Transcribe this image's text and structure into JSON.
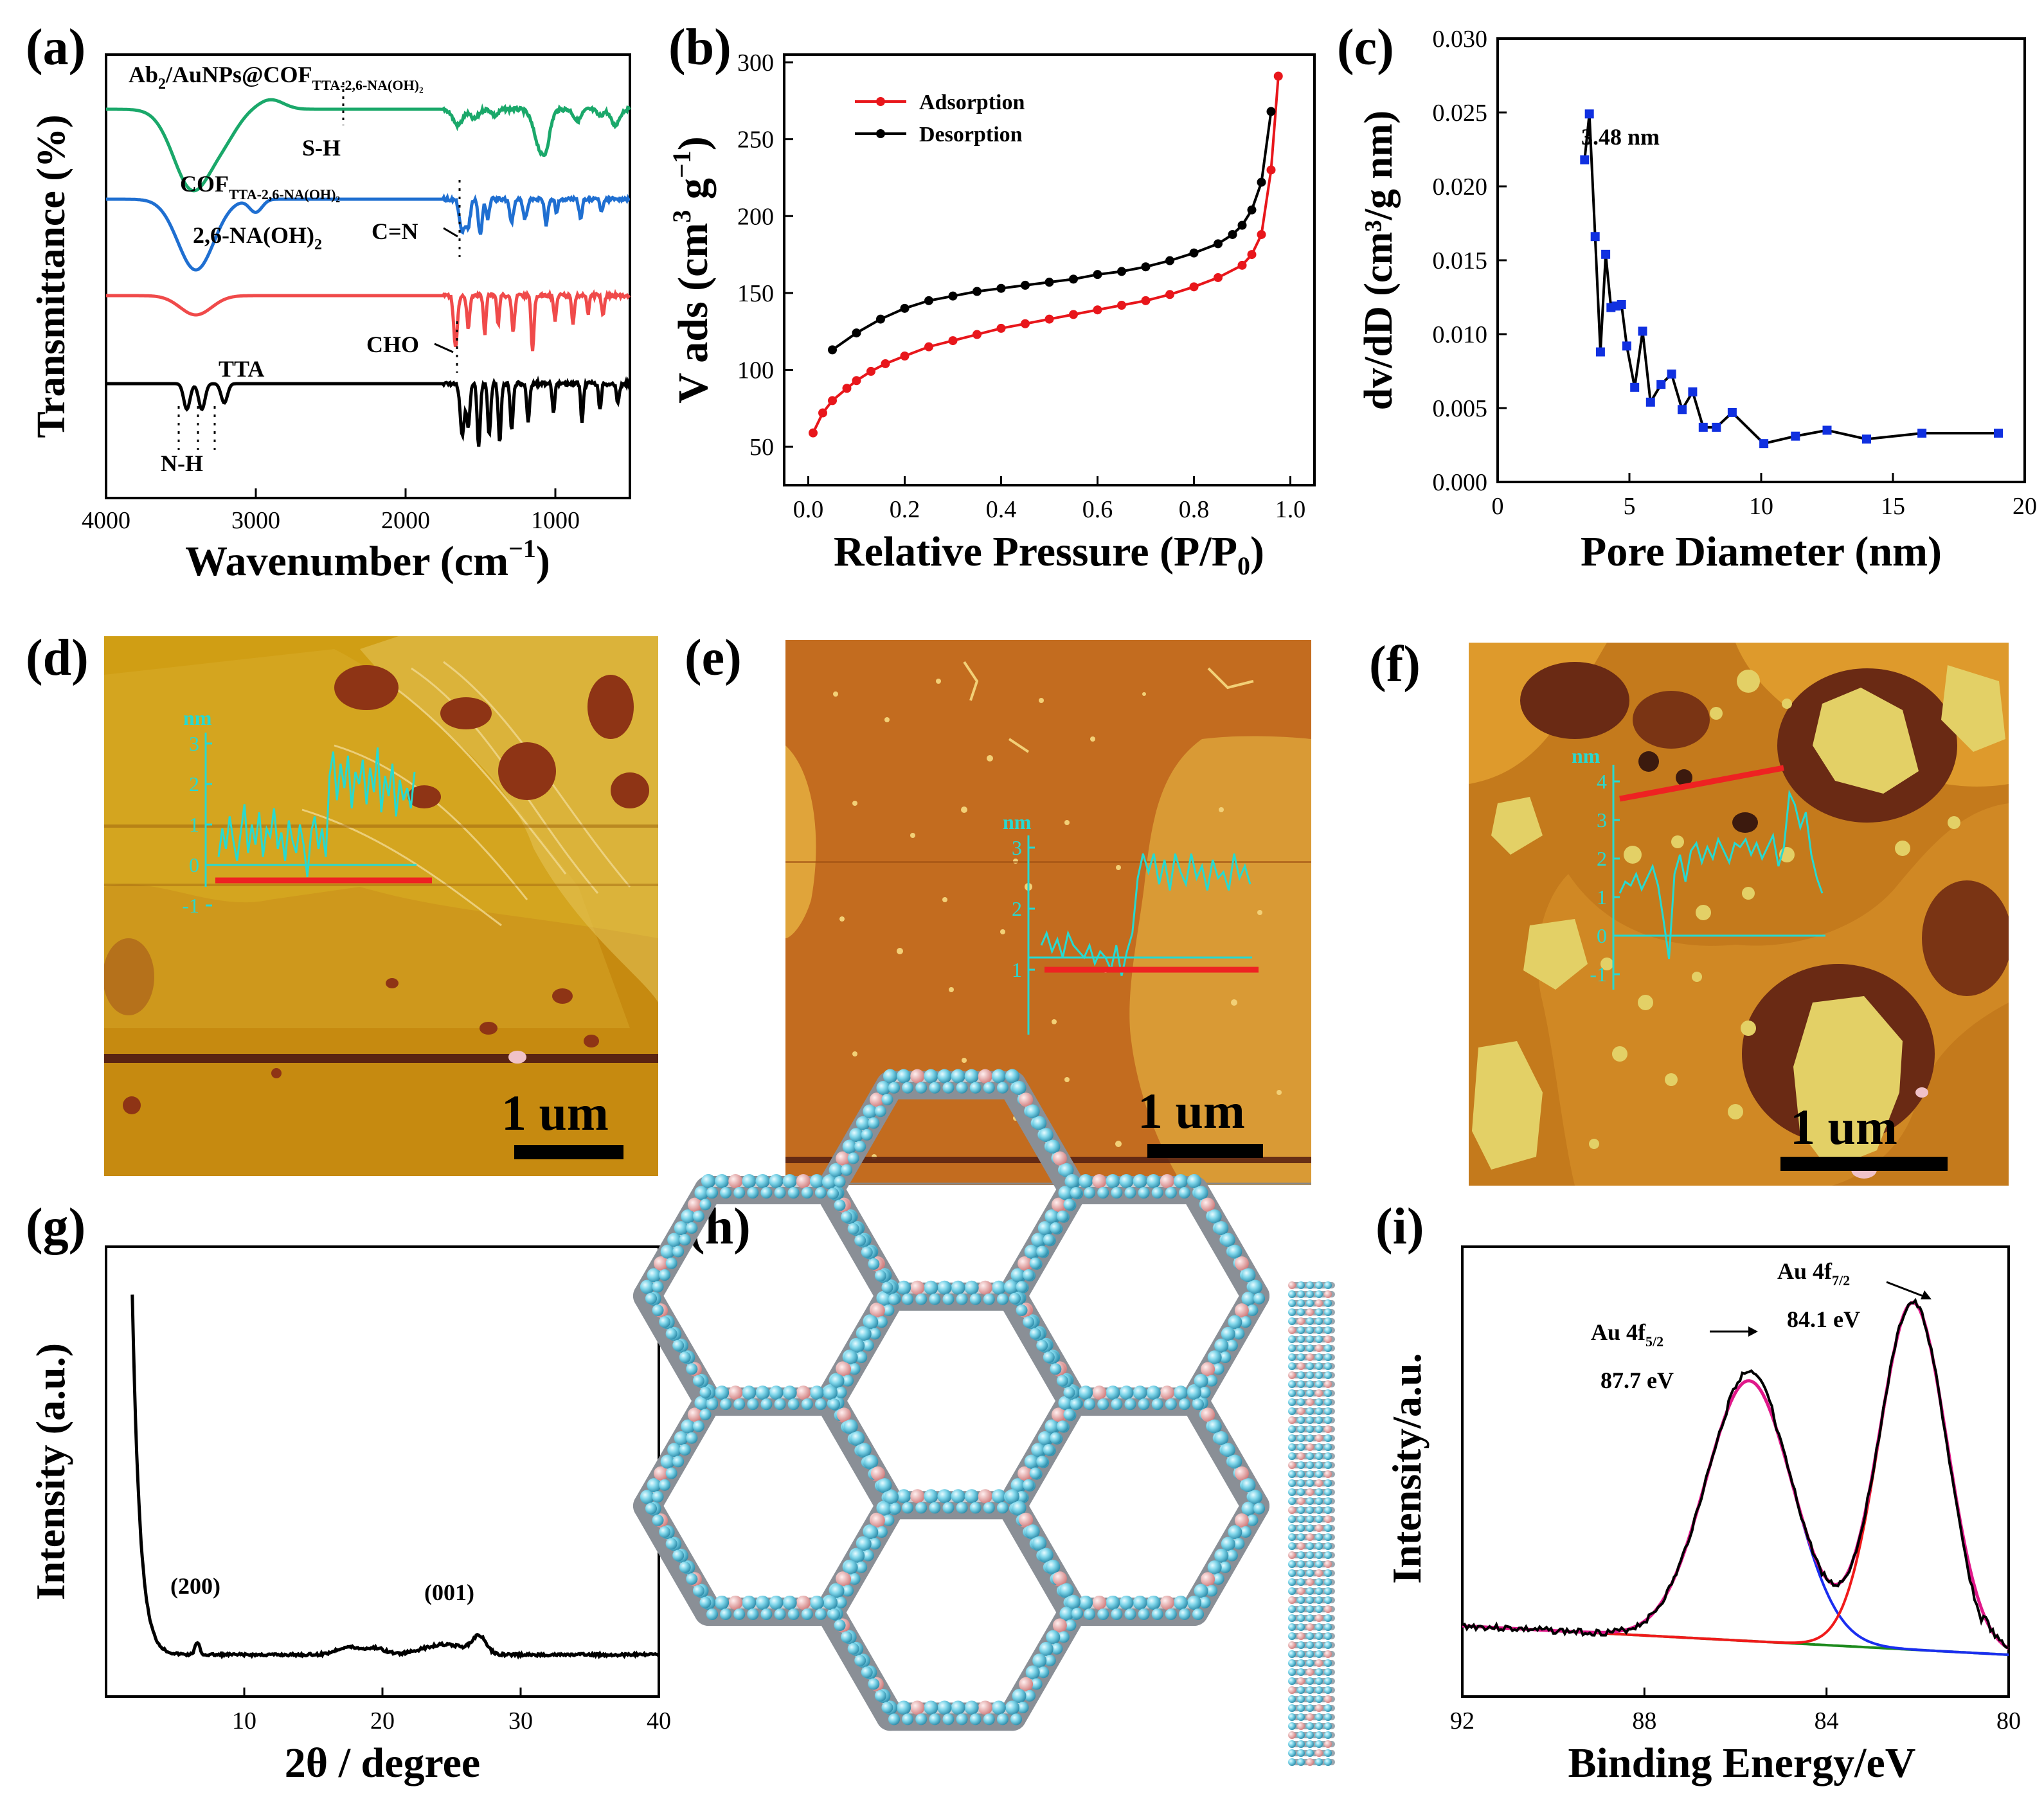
{
  "figure": {
    "panel_labels": [
      "(a)",
      "(b)",
      "(c)",
      "(d)",
      "(e)",
      "(f)",
      "(g)",
      "(h)",
      "(i)"
    ]
  },
  "panel_a": {
    "xlabel": "Wavenumber (cm",
    "xlabel_sup": "−1",
    "xlabel_close": ")",
    "ylabel": "Transmittance (%)",
    "x_ticks": [
      "4000",
      "3000",
      "2000",
      "1000"
    ],
    "series_labels": {
      "ab_prefix": "Ab",
      "ab_sub": "2",
      "ab_main": "/AuNPs@COF",
      "ab_tail": "TTA-2,6-NA(OH)₂",
      "cof_main": "COF",
      "cof_tail": "TTA-2,6-NA(OH)₂",
      "na_main": "2,6-NA(OH)",
      "na_sub": "2",
      "tta": "TTA"
    },
    "annotations": {
      "sh": "S-H",
      "cn": "C=N",
      "cho": "CHO",
      "nh": "N-H"
    },
    "colors": {
      "ab": "#1aa86a",
      "cof": "#1f6fd1",
      "na": "#f04a4a",
      "tta": "#000000"
    }
  },
  "panel_b": {
    "chart_data": {
      "type": "line",
      "title": "",
      "xlabel": "Relative Pressure (P/P0)",
      "ylabel": "V ads (cm3 g-1)",
      "xlim": [
        -0.05,
        1.05
      ],
      "ylim": [
        25,
        305
      ],
      "x_ticks": [
        "0.0",
        "0.2",
        "0.4",
        "0.6",
        "0.8",
        "1.0"
      ],
      "y_ticks": [
        "50",
        "100",
        "150",
        "200",
        "250",
        "300"
      ],
      "legend": "top-left",
      "series": [
        {
          "name": "Adsorption",
          "color": "#e8161b",
          "x": [
            0.01,
            0.03,
            0.05,
            0.08,
            0.1,
            0.13,
            0.16,
            0.2,
            0.25,
            0.3,
            0.35,
            0.4,
            0.45,
            0.5,
            0.55,
            0.6,
            0.65,
            0.7,
            0.75,
            0.8,
            0.85,
            0.9,
            0.92,
            0.94,
            0.96,
            0.975
          ],
          "y": [
            59,
            72,
            80,
            88,
            93,
            99,
            104,
            109,
            115,
            119,
            123,
            127,
            130,
            133,
            136,
            139,
            142,
            145,
            149,
            154,
            160,
            168,
            175,
            188,
            230,
            291
          ]
        },
        {
          "name": "Desorption",
          "color": "#000000",
          "x": [
            0.05,
            0.1,
            0.15,
            0.2,
            0.25,
            0.3,
            0.35,
            0.4,
            0.45,
            0.5,
            0.55,
            0.6,
            0.65,
            0.7,
            0.75,
            0.8,
            0.85,
            0.88,
            0.9,
            0.92,
            0.94,
            0.96
          ],
          "y": [
            113,
            124,
            133,
            140,
            145,
            148,
            151,
            153,
            155,
            157,
            159,
            162,
            164,
            167,
            171,
            176,
            182,
            188,
            194,
            204,
            222,
            268
          ]
        }
      ]
    },
    "xlabel_main": "Relative Pressure (P/P",
    "xlabel_sub": "0",
    "xlabel_close": ")",
    "ylabel_main": "V ads (cm",
    "ylabel_sup1": "3",
    "ylabel_mid": " g",
    "ylabel_sup2": "−1",
    "ylabel_close": ")"
  },
  "panel_c": {
    "chart_data": {
      "type": "line",
      "xlabel": "Pore Diameter (nm)",
      "ylabel": "dv/dD (cm³/g nm)",
      "xlim": [
        0,
        20
      ],
      "ylim": [
        0,
        0.03
      ],
      "x_ticks": [
        "0",
        "5",
        "10",
        "15",
        "20"
      ],
      "y_ticks": [
        "0.000",
        "0.005",
        "0.010",
        "0.015",
        "0.020",
        "0.025",
        "0.030"
      ],
      "series": [
        {
          "name": "dv/dD",
          "color": "#1030e0",
          "x": [
            3.3,
            3.48,
            3.7,
            3.9,
            4.1,
            4.3,
            4.5,
            4.7,
            4.9,
            5.2,
            5.5,
            5.8,
            6.2,
            6.6,
            7.0,
            7.4,
            7.8,
            8.3,
            8.9,
            10.1,
            11.3,
            12.5,
            14.0,
            16.1,
            19.0
          ],
          "y": [
            0.0218,
            0.0249,
            0.0166,
            0.0088,
            0.0154,
            0.0118,
            0.0119,
            0.012,
            0.0092,
            0.0064,
            0.0102,
            0.0054,
            0.0066,
            0.0073,
            0.0049,
            0.0061,
            0.0037,
            0.0037,
            0.0047,
            0.0026,
            0.0031,
            0.0035,
            0.0029,
            0.0033,
            0.0033
          ]
        }
      ],
      "annotations": [
        "3.48 nm"
      ]
    }
  },
  "panel_d": {
    "scale_bar": "1 um",
    "profile": {
      "unit": "nm",
      "y_ticks": [
        "3",
        "2",
        "1",
        "0",
        "-1"
      ],
      "values": [
        0.2,
        0.9,
        0.4,
        1.2,
        0.6,
        0.1,
        0.8,
        1.5,
        0.3,
        1.0,
        0.5,
        1.3,
        0.2,
        0.9,
        0.7,
        1.4,
        0.4,
        0.8,
        0.1,
        1.1,
        0.6,
        0.3,
        1.0,
        0.5,
        -0.3,
        0.8,
        1.2,
        0.4,
        0.9,
        0.2,
        2.2,
        2.8,
        1.6,
        2.5,
        1.9,
        2.7,
        1.4,
        2.3,
        2.0,
        2.6,
        1.5,
        2.4,
        1.8,
        2.9,
        1.3,
        2.2,
        1.7,
        2.5,
        1.2,
        2.1,
        1.6,
        1.9,
        1.4,
        2.3
      ]
    }
  },
  "panel_e": {
    "scale_bar": "1 um",
    "profile": {
      "unit": "nm",
      "y_ticks": [
        "3",
        "2",
        "1"
      ],
      "values": [
        1.4,
        1.6,
        1.3,
        1.5,
        1.2,
        1.6,
        1.4,
        1.3,
        1.2,
        1.4,
        1.1,
        1.3,
        1.2,
        1.0,
        1.4,
        0.9,
        1.3,
        1.6,
        2.5,
        2.9,
        2.6,
        2.9,
        2.4,
        2.8,
        2.3,
        2.9,
        2.6,
        2.4,
        2.9,
        2.5,
        2.7,
        2.3,
        2.8,
        2.5,
        2.6,
        2.3,
        2.9,
        2.5,
        2.7,
        2.4
      ]
    }
  },
  "panel_f": {
    "scale_bar": "1 um",
    "profile": {
      "unit": "nm",
      "y_ticks": [
        "4",
        "3",
        "2",
        "1",
        "0",
        "-1"
      ],
      "values": [
        1.1,
        1.4,
        1.3,
        1.6,
        1.2,
        1.5,
        1.8,
        1.3,
        0.4,
        -0.6,
        1.6,
        2.1,
        1.4,
        2.2,
        2.4,
        1.9,
        2.3,
        2.0,
        2.5,
        2.2,
        1.9,
        2.4,
        2.3,
        2.5,
        2.1,
        2.4,
        2.0,
        2.3,
        2.6,
        1.8,
        2.3,
        3.7,
        3.4,
        2.8,
        3.2,
        2.1,
        1.5,
        1.1
      ]
    }
  },
  "panel_g": {
    "chart_data": {
      "type": "line",
      "xlabel": "2θ  / degree",
      "ylabel": "Intensity (a.u.)",
      "xlim": [
        0,
        40
      ],
      "x_ticks": [
        "10",
        "20",
        "30",
        "40"
      ],
      "annotations": [
        "(200)",
        "(001)"
      ]
    }
  },
  "panel_h": {
    "description_hidden": true
  },
  "panel_i": {
    "chart_data": {
      "type": "line",
      "xlabel": "Binding Energy/eV",
      "ylabel": "Intensity/a.u.",
      "xlim": [
        92,
        80
      ],
      "x_ticks": [
        "92",
        "88",
        "84",
        "80"
      ],
      "peaks": [
        {
          "label": "Au 4f5/2",
          "position_eV": 87.7,
          "color": "#1a2ef0"
        },
        {
          "label": "Au 4f7/2",
          "position_eV": 84.1,
          "color": "#f01a1a"
        }
      ],
      "series_colors": {
        "raw": "#000000",
        "envelope": "#e0188a",
        "background": "#1d8a1d"
      }
    },
    "peak_labels": {
      "au_main": "Au 4f",
      "p1_sub": "5/2",
      "p1_val": "87.7 eV",
      "p2_sub": "7/2",
      "p2_val": "84.1 eV"
    }
  }
}
